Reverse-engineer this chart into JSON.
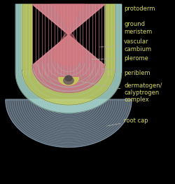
{
  "background_color": "#000000",
  "figsize": [
    2.5,
    2.63
  ],
  "dpi": 100,
  "labels": {
    "protoderm": "protoderm",
    "ground_meristem": "ground\nmeristem",
    "vascular_cambium": "vascular\ncambium",
    "plerome": "plerome",
    "periblem": "periblem",
    "dermatogen": "dermatogen/\ncalyptrogen\ncomplex",
    "root_cap": "root cap"
  },
  "colors": {
    "outer_teal": "#a8d8d0",
    "ground_meristem": "#c8d870",
    "plerome": "#e8909a",
    "periblem": "#c8d870",
    "calyptrogen": "#c8c858",
    "root_cap_bg": "#b8cce0",
    "root_cap_lines": "#88aac8",
    "teal_inner": "#90c8c0",
    "vascular": "#d87880",
    "dark_center": "#706060",
    "dark_center2": "#504848",
    "stripe_pink": "#e090a0",
    "stripe_yellow": "#c8d068",
    "stripe_teal": "#98c8c0",
    "line_dark": "#404838"
  },
  "label_color": "#d8d860",
  "label_fontsize": 6.0,
  "arrow_color": "#b0b0a0",
  "xlim": [
    -1.35,
    2.1
  ],
  "ylim": [
    -3.2,
    1.6
  ]
}
